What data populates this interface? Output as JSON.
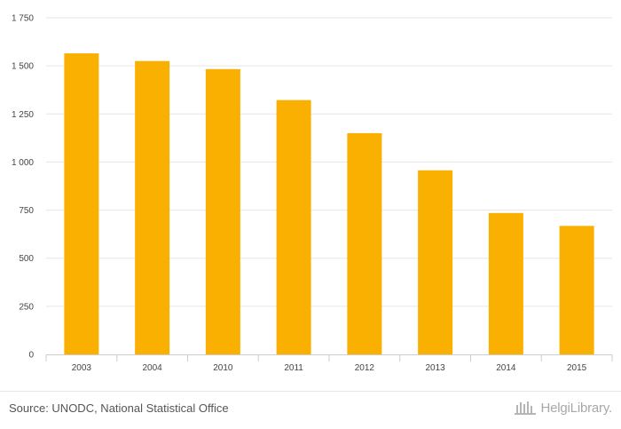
{
  "chart_data": {
    "type": "bar",
    "categories": [
      "2003",
      "2004",
      "2010",
      "2011",
      "2012",
      "2013",
      "2014",
      "2015"
    ],
    "values": [
      1565,
      1525,
      1483,
      1322,
      1150,
      957,
      735,
      668
    ],
    "ylim": [
      0,
      1750
    ],
    "yticks": [
      0,
      250,
      500,
      750,
      1000,
      1250,
      1500,
      1750
    ],
    "ytick_labels": [
      "0",
      "250",
      "500",
      "750",
      "1 000",
      "1 250",
      "1 500",
      "1 750"
    ],
    "title": "",
    "xlabel": "",
    "ylabel": "",
    "grid": true,
    "legend": "none",
    "bar_color": "#F9B000",
    "grid_color": "#e6e6e6"
  },
  "footer": {
    "source": "Source: UNODC, National Statistical Office",
    "brand": "HelgiLibrary."
  }
}
